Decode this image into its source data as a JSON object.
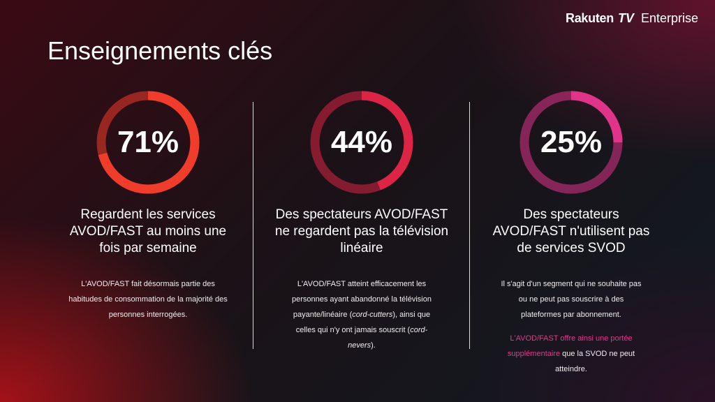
{
  "brand": {
    "rakuten": "Rakuten",
    "tv": "TV",
    "enterprise": "Enterprise"
  },
  "title": "Enseignements clés",
  "cards": [
    {
      "percent": "71%",
      "value": 71,
      "color": "#f03c2a",
      "heading_lines": [
        "Regardent les services",
        "AVOD/FAST au moins une",
        "fois par semaine"
      ],
      "body_lines": [
        "L'AVOD/FAST fait désormais partie des",
        "habitudes de consommation de la majorité des",
        "personnes interrogées."
      ]
    },
    {
      "percent": "44%",
      "value": 44,
      "color": "#dc2545",
      "heading_lines": [
        "Des spectateurs AVOD/FAST",
        "ne regardent pas la télévision",
        "linéaire"
      ],
      "body": {
        "l1": "L'AVOD/FAST atteint efficacement les",
        "l2": "personnes ayant abandonné la télévision",
        "l3a": "payante/linéaire (",
        "l3i": "cord-cutters",
        "l3b": "), ainsi que",
        "l4a": "celles qui n'y ont jamais souscrit (",
        "l4i": "cord-",
        "l5i": "nevers",
        "l5b": ")."
      }
    },
    {
      "percent": "25%",
      "value": 25,
      "color": "#e0338a",
      "heading_lines": [
        "Des spectateurs",
        "AVOD/FAST n'utilisent pas",
        "de services SVOD"
      ],
      "body_lines": [
        "Il s'agit d'un segment qui ne souhaite pas",
        "ou ne peut pas souscrire à des",
        "plateformes par abonnement."
      ],
      "body2": {
        "p1": "L'AVOD/FAST offre ainsi une portée",
        "p2": "supplémentaire",
        "n2": " que la SVOD ne peut",
        "n3": "atteindre."
      }
    }
  ]
}
